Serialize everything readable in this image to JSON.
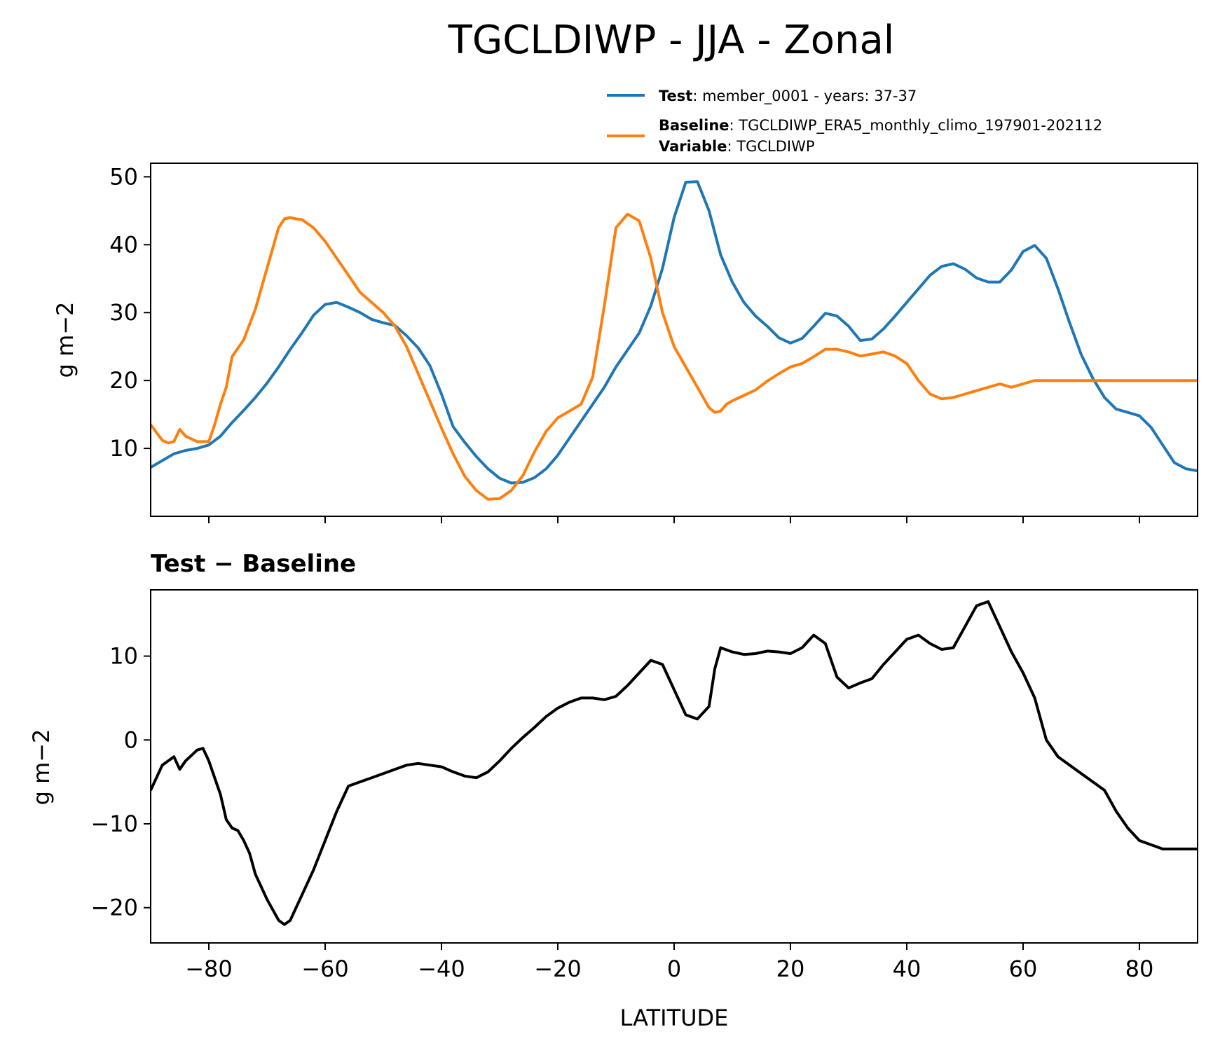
{
  "figure_title": "TGCLDIWP - JJA - Zonal",
  "colors": {
    "test": "#1f77b4",
    "baseline": "#ff7f0e",
    "difference": "#000000"
  },
  "legend": [
    {
      "name": "Test",
      "separator": ": ",
      "text": "member_0001 - years: 37-37"
    },
    {
      "name": "Baseline",
      "separator": ": ",
      "text": "TGCLDIWP_ERA5_monthly_climo_197901-202112"
    },
    {
      "name": "Variable",
      "separator": ": ",
      "text": "TGCLDIWP"
    }
  ],
  "xlabel": "LATITUDE",
  "chart_data": [
    {
      "type": "line",
      "title": "",
      "xlabel": "",
      "ylabel": "g m−2",
      "xlim": [
        -90,
        90
      ],
      "ylim": [
        0,
        52
      ],
      "xticks": [
        -80,
        -60,
        -40,
        -20,
        0,
        20,
        40,
        60,
        80
      ],
      "yticks": [
        10,
        20,
        30,
        40,
        50
      ],
      "ytick_labels": [
        "10",
        "20",
        "30",
        "40",
        "50"
      ],
      "series": [
        {
          "name": "Test",
          "color": "#1f77b4",
          "x": [
            -90,
            -88,
            -86,
            -84,
            -82,
            -80,
            -78,
            -76,
            -74,
            -72,
            -70,
            -68,
            -66,
            -64,
            -62,
            -60,
            -58,
            -56,
            -54,
            -52,
            -50,
            -48,
            -46,
            -44,
            -42,
            -40,
            -38,
            -36,
            -34,
            -32,
            -30,
            -28,
            -26,
            -24,
            -22,
            -20,
            -18,
            -16,
            -14,
            -12,
            -10,
            -8,
            -6,
            -4,
            -2,
            0,
            2,
            4,
            6,
            8,
            10,
            12,
            14,
            16,
            18,
            20,
            22,
            24,
            26,
            28,
            30,
            32,
            34,
            36,
            38,
            40,
            42,
            44,
            46,
            48,
            50,
            52,
            54,
            56,
            58,
            60,
            62,
            64,
            66,
            68,
            70,
            72,
            74,
            76,
            78,
            80,
            82,
            84,
            86,
            88,
            90
          ],
          "values": [
            7.2,
            8.2,
            9.2,
            9.7,
            10.0,
            10.5,
            11.8,
            13.8,
            15.6,
            17.5,
            19.6,
            22.0,
            24.6,
            27.0,
            29.6,
            31.2,
            31.5,
            30.8,
            30.0,
            29.0,
            28.5,
            28.1,
            26.6,
            24.8,
            22.2,
            18.0,
            13.2,
            10.9,
            8.8,
            7.0,
            5.6,
            4.9,
            5.0,
            5.7,
            7.0,
            9.0,
            11.5,
            14.0,
            16.5,
            19.0,
            22.0,
            24.5,
            27.0,
            31.0,
            36.5,
            44.0,
            49.2,
            49.3,
            45.0,
            38.5,
            34.5,
            31.5,
            29.5,
            28.0,
            26.3,
            25.5,
            26.2,
            28.0,
            29.9,
            29.5,
            28.0,
            25.9,
            26.1,
            27.6,
            29.5,
            31.5,
            33.5,
            35.5,
            36.8,
            37.2,
            36.4,
            35.1,
            34.5,
            34.5,
            36.3,
            39.0,
            39.9,
            38.0,
            33.5,
            28.5,
            23.8,
            20.3,
            17.5,
            15.8,
            15.3,
            14.8,
            13.1,
            10.5,
            7.9,
            7.0,
            6.7
          ]
        },
        {
          "name": "Baseline",
          "color": "#ff7f0e",
          "x": [
            -90,
            -88,
            -87,
            -86,
            -85,
            -84,
            -82,
            -80,
            -79,
            -78,
            -77,
            -76,
            -74,
            -72,
            -70,
            -68,
            -67,
            -66,
            -65,
            -64,
            -62,
            -60,
            -58,
            -56,
            -54,
            -52,
            -50,
            -48,
            -46,
            -44,
            -42,
            -40,
            -38,
            -36,
            -34,
            -32,
            -30,
            -28,
            -26,
            -24,
            -22,
            -20,
            -18,
            -16,
            -14,
            -12,
            -10,
            -8,
            -6,
            -4,
            -2,
            0,
            2,
            4,
            6,
            7,
            8,
            9,
            10,
            12,
            14,
            16,
            18,
            20,
            22,
            24,
            26,
            28,
            30,
            32,
            34,
            36,
            38,
            40,
            42,
            44,
            46,
            48,
            50,
            52,
            54,
            56,
            58,
            60,
            62,
            64,
            66,
            68,
            70,
            72,
            74,
            76,
            78,
            80,
            82,
            84,
            86,
            88,
            90
          ],
          "values": [
            13.5,
            11.2,
            10.8,
            11.0,
            12.8,
            11.8,
            11.0,
            11.0,
            13.5,
            16.5,
            19.0,
            23.5,
            26.0,
            30.5,
            36.5,
            42.5,
            43.8,
            44.0,
            43.8,
            43.7,
            42.5,
            40.5,
            38.0,
            35.5,
            33.0,
            31.5,
            30.0,
            28.0,
            25.0,
            21.0,
            17.0,
            13.0,
            9.2,
            5.9,
            3.8,
            2.5,
            2.6,
            3.8,
            6.0,
            9.5,
            12.5,
            14.5,
            15.5,
            16.5,
            20.5,
            31.0,
            42.5,
            44.5,
            43.5,
            38.0,
            30.0,
            25.0,
            22.0,
            19.0,
            16.0,
            15.3,
            15.5,
            16.5,
            17.0,
            17.8,
            18.6,
            19.9,
            21.0,
            22.0,
            22.5,
            23.5,
            24.6,
            24.6,
            24.2,
            23.6,
            23.9,
            24.2,
            23.6,
            22.5,
            20.0,
            18.0,
            17.3,
            17.5,
            18.0,
            18.5,
            19.0,
            19.5,
            19.0,
            19.5,
            20.0,
            20.0,
            20.0,
            20.0,
            20.0,
            20.0,
            20.0,
            20.0,
            20.0,
            20.0,
            20.0,
            20.0,
            20.0,
            20.0,
            20.0
          ]
        }
      ]
    },
    {
      "type": "line",
      "title": "Test − Baseline",
      "xlabel": "LATITUDE",
      "ylabel": "g m−2",
      "xlim": [
        -90,
        90
      ],
      "ylim": [
        -24.2,
        17.9
      ],
      "xticks": [
        -80,
        -60,
        -40,
        -20,
        0,
        20,
        40,
        60,
        80
      ],
      "xtick_labels": [
        "−80",
        "−60",
        "−40",
        "−20",
        "0",
        "20",
        "40",
        "60",
        "80"
      ],
      "yticks": [
        -20,
        -10,
        0,
        10
      ],
      "ytick_labels": [
        "−20",
        "−10",
        "0",
        "10"
      ],
      "series": [
        {
          "name": "Test − Baseline",
          "color": "#000000",
          "x": [
            -90,
            -88,
            -86,
            -85,
            -84,
            -82,
            -81,
            -80,
            -79,
            -78,
            -77,
            -76,
            -75,
            -74,
            -73,
            -72,
            -70,
            -68,
            -67,
            -66,
            -64,
            -62,
            -60,
            -58,
            -56,
            -54,
            -52,
            -50,
            -48,
            -46,
            -44,
            -42,
            -40,
            -38,
            -36,
            -34,
            -32,
            -30,
            -28,
            -26,
            -24,
            -22,
            -20,
            -18,
            -16,
            -14,
            -12,
            -10,
            -8,
            -6,
            -4,
            -2,
            0,
            2,
            4,
            6,
            7,
            8,
            10,
            12,
            14,
            16,
            18,
            20,
            22,
            24,
            26,
            28,
            30,
            32,
            34,
            36,
            38,
            40,
            42,
            44,
            46,
            48,
            50,
            52,
            54,
            56,
            58,
            60,
            62,
            64,
            66,
            68,
            70,
            72,
            74,
            76,
            78,
            80,
            82,
            84,
            86,
            88,
            90
          ],
          "values": [
            -6.0,
            -3.0,
            -2.0,
            -3.5,
            -2.5,
            -1.2,
            -1.0,
            -2.5,
            -4.5,
            -6.5,
            -9.5,
            -10.5,
            -10.8,
            -12.0,
            -13.5,
            -16.0,
            -19.0,
            -21.5,
            -22.0,
            -21.5,
            -18.5,
            -15.5,
            -12.0,
            -8.5,
            -5.5,
            -5.0,
            -4.5,
            -4.0,
            -3.5,
            -3.0,
            -2.8,
            -3.0,
            -3.2,
            -3.8,
            -4.3,
            -4.5,
            -3.8,
            -2.5,
            -1.0,
            0.3,
            1.5,
            2.8,
            3.8,
            4.5,
            5.0,
            5.0,
            4.8,
            5.2,
            6.5,
            8.0,
            9.5,
            9.0,
            6.0,
            3.0,
            2.5,
            4.0,
            8.5,
            11.0,
            10.5,
            10.2,
            10.3,
            10.6,
            10.5,
            10.3,
            11.0,
            12.5,
            11.5,
            7.5,
            6.2,
            6.8,
            7.3,
            9.0,
            10.5,
            12.0,
            12.5,
            11.5,
            10.8,
            11.0,
            13.5,
            16.0,
            16.5,
            13.5,
            10.5,
            8.0,
            5.0,
            0.0,
            -2.0,
            -3.0,
            -4.0,
            -5.0,
            -6.0,
            -8.5,
            -10.5,
            -12.0,
            -12.5,
            -13.0,
            -13.0,
            -13.0,
            -13.0
          ]
        }
      ]
    }
  ]
}
